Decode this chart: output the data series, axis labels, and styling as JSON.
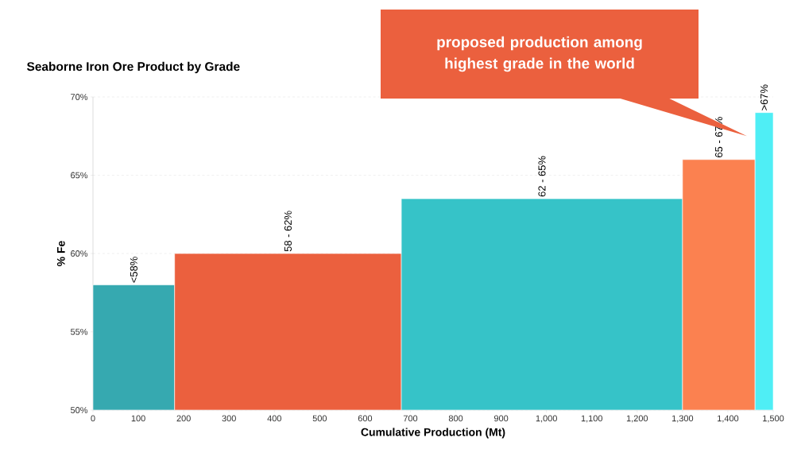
{
  "chart_data": {
    "type": "histogram",
    "title": "Seaborne Iron Ore Product by Grade",
    "xlabel": "Cumulative Production (Mt)",
    "ylabel": "% Fe",
    "bins": [
      0,
      180,
      680,
      1300,
      1460,
      1500
    ],
    "values": [
      58,
      60,
      63.5,
      66,
      69
    ],
    "colors": [
      "#36a9b0",
      "#eb603e",
      "#36c3c8",
      "#fb8150",
      "#4feef5"
    ],
    "xlim": [
      0,
      1500
    ],
    "ylim": [
      50,
      70
    ],
    "xticks": [
      0,
      100,
      200,
      300,
      400,
      500,
      600,
      700,
      800,
      900,
      {
        "value": 1000,
        "label": "1,000"
      },
      {
        "value": 1100,
        "label": "1,100"
      },
      {
        "value": 1200,
        "label": "1,200"
      },
      {
        "value": 1300,
        "label": "1,300"
      },
      {
        "value": 1400,
        "label": "1,400"
      },
      {
        "value": 1500,
        "label": "1,500"
      }
    ],
    "yticks": [
      {
        "value": 50,
        "label": "50%"
      },
      {
        "value": 55,
        "label": "55%"
      },
      {
        "value": 60,
        "label": "60%"
      },
      {
        "value": 65,
        "label": "65%"
      },
      {
        "value": 70,
        "label": "70%"
      }
    ],
    "grid": "y",
    "annotations": [
      {
        "text": "<58%",
        "x": 90,
        "y": 58
      },
      {
        "text": "58 - 62%",
        "x": 430,
        "y": 60
      },
      {
        "text": "62 - 65%",
        "x": 990,
        "y": 63.5
      },
      {
        "text": "65 - 67%",
        "x": 1380,
        "y": 66
      },
      {
        "text": ">67%",
        "x": 1480,
        "y": 69
      },
      "proposed production among highest grade in the world"
    ]
  }
}
